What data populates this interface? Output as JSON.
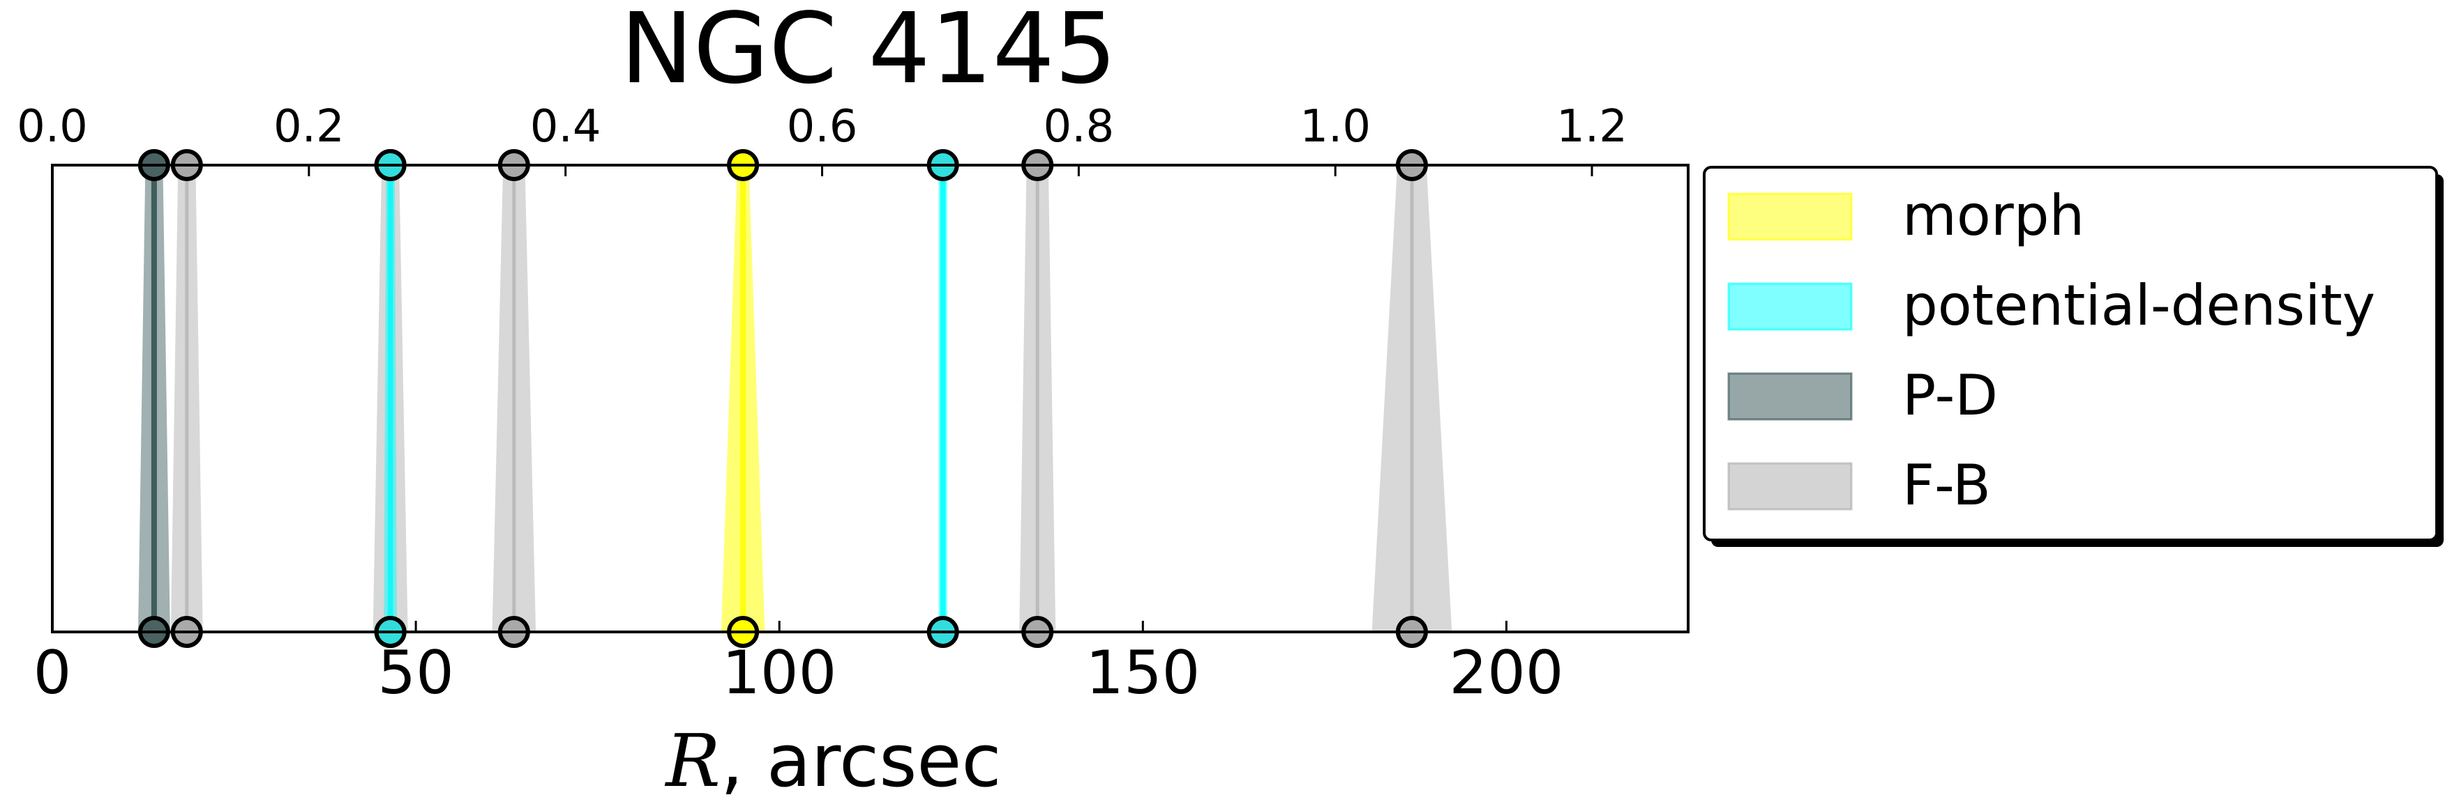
{
  "chart_data": {
    "type": "line",
    "title": "NGC 4145",
    "xlabel_symbol": "R",
    "xlabel_unit": ", arcsec",
    "xlim": [
      0,
      225
    ],
    "top_xlim": [
      0,
      1.275
    ],
    "x_ticks": [
      "0",
      "50",
      "100",
      "150",
      "200"
    ],
    "x_tick_values": [
      0,
      50,
      100,
      150,
      200
    ],
    "top_ticks": [
      "0.0",
      "0.2",
      "0.4",
      "0.6",
      "0.8",
      "1.0",
      "1.2"
    ],
    "top_tick_values": [
      0.0,
      0.2,
      0.4,
      0.6,
      0.8,
      1.0,
      1.2
    ],
    "grid": false,
    "legend_position": "outside-right",
    "series": [
      {
        "name": "morph",
        "color": "#ffff00",
        "edge": "#ffff00",
        "marker": "#ffff00",
        "points": [
          {
            "x": 95,
            "half_width_top": 0.8,
            "half_width_bottom": 3
          }
        ]
      },
      {
        "name": "potential-density",
        "color": "#00ffff",
        "edge": "#00ffff",
        "marker": "#33dddd",
        "points": [
          {
            "x": 46.5,
            "half_width_top": 0.6,
            "half_width_bottom": 0.9
          },
          {
            "x": 122.5,
            "half_width_top": 0.6,
            "half_width_bottom": 0.6
          }
        ]
      },
      {
        "name": "P-D",
        "color": "#2f4f4f",
        "edge": "#2f4f4f",
        "marker": "#4a6262",
        "points": [
          {
            "x": 14,
            "half_width_top": 1.2,
            "half_width_bottom": 2.2
          }
        ]
      },
      {
        "name": "F-B",
        "color": "#a9a9a9",
        "edge": "#a9a9a9",
        "marker": "#a9a9a9",
        "points": [
          {
            "x": 18.5,
            "half_width_top": 1.2,
            "half_width_bottom": 2.2
          },
          {
            "x": 46.5,
            "half_width_top": 1.2,
            "half_width_bottom": 2.4
          },
          {
            "x": 63.5,
            "half_width_top": 1.5,
            "half_width_bottom": 3
          },
          {
            "x": 135.5,
            "half_width_top": 1.5,
            "half_width_bottom": 2.5
          },
          {
            "x": 187,
            "half_width_top": 2,
            "half_width_bottom": 5.5
          }
        ]
      }
    ]
  }
}
